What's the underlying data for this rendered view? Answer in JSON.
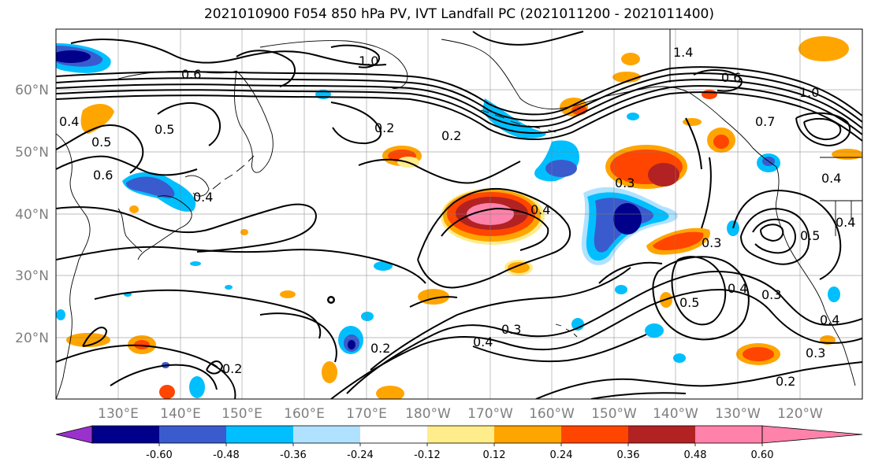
{
  "title": "2021010900 F054 850 hPa PV, IVT Landfall PC (2021011200 - 2021011400)",
  "map": {
    "lat_labels": [
      "60°N",
      "50°N",
      "40°N",
      "30°N",
      "20°N"
    ],
    "lon_labels": [
      "130°E",
      "140°E",
      "150°E",
      "160°E",
      "170°E",
      "180°W",
      "170°W",
      "160°W",
      "150°W",
      "140°W",
      "130°W",
      "120°W"
    ],
    "contour_labels": [
      "1.4",
      "1.0",
      "0.6",
      "1.0",
      "0.7",
      "0.4",
      "0.4",
      "0.2",
      "0.2",
      "0.3",
      "0.4",
      "0.3",
      "0.5",
      "0.5",
      "0.4",
      "0.4",
      "0.3",
      "0.3",
      "0.4",
      "0.2",
      "0.4",
      "0.3",
      "0.2",
      "0.2",
      "0.5",
      "0.6",
      "0.4",
      "0.6",
      "0.5"
    ]
  },
  "colorbar": {
    "colors": [
      "#9932cc",
      "#00008b",
      "#3a5bcd",
      "#00bfff",
      "#b0e2ff",
      "#ffffff",
      "#ffec8b",
      "#ffa500",
      "#ff4500",
      "#b22222",
      "#ff82ab"
    ],
    "tick_labels": [
      "-0.60",
      "-0.48",
      "-0.36",
      "-0.24",
      "-0.12",
      "0.12",
      "0.24",
      "0.36",
      "0.48",
      "0.60"
    ]
  }
}
